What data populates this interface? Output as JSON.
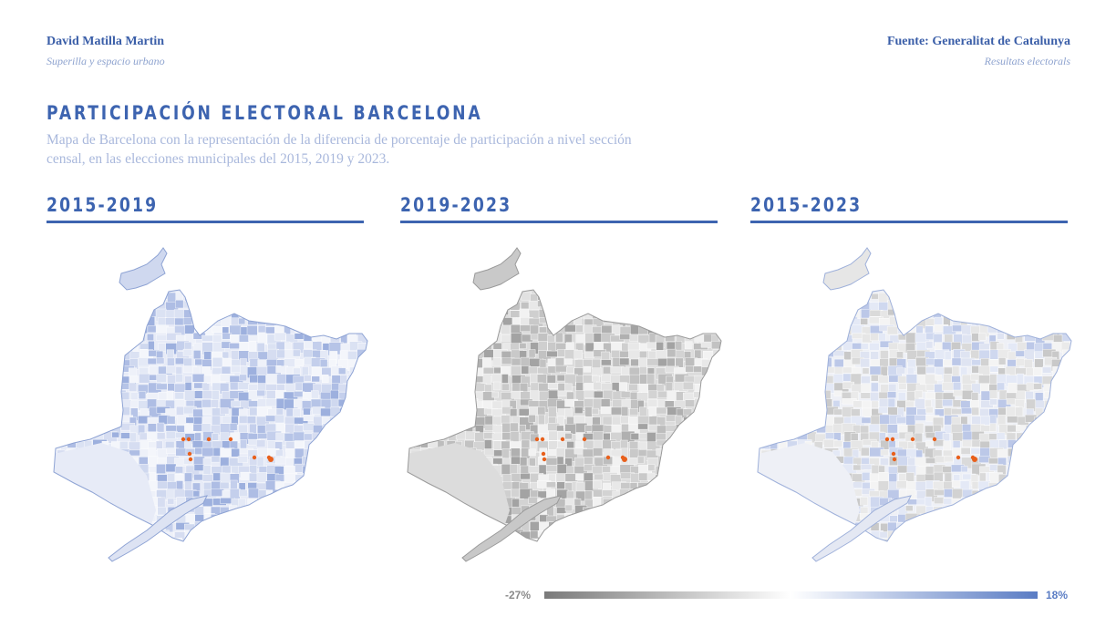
{
  "header": {
    "author": "David Matilla Martin",
    "author_subtitle": "Superilla y espacio urbano",
    "source": "Fuente: Generalitat de Catalunya",
    "source_subtitle": "Resultats electorals"
  },
  "title": "PARTICIPACIÓN ELECTORAL BARCELONA",
  "subtitle": "Mapa de Barcelona con la representación de la diferencia de porcentaje de participación a nivel sección censal, en las elecciones municipales del 2015, 2019 y 2023.",
  "panels": [
    {
      "label": "2015-2019",
      "palette": "blue"
    },
    {
      "label": "2019-2023",
      "palette": "grey"
    },
    {
      "label": "2015-2023",
      "palette": "mixed"
    }
  ],
  "legend": {
    "min_label": "-27%",
    "max_label": "18%",
    "min_color": "#7a7a7a",
    "mid_color": "#ffffff",
    "max_color": "#5a7cc4"
  },
  "colors": {
    "accent": "#3d64b0",
    "marker": "#e8601c"
  }
}
